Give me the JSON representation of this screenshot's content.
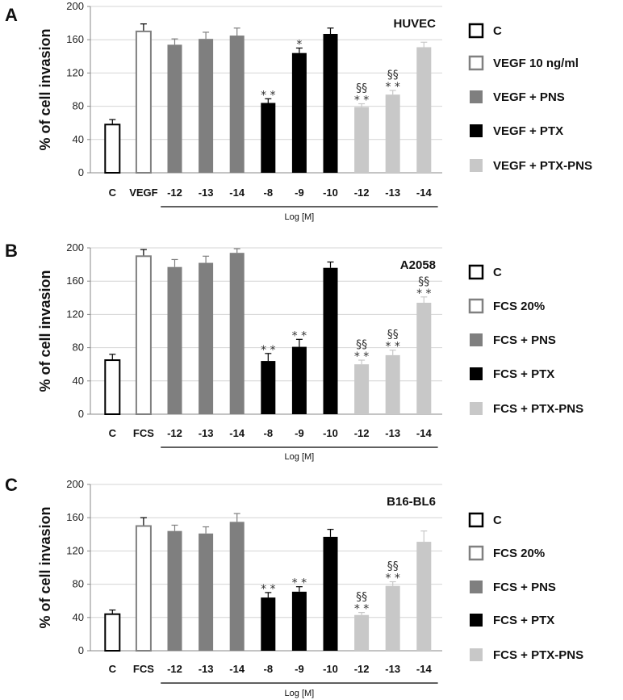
{
  "colors": {
    "C": "#ffffff",
    "VEGF": "#ffffff",
    "PNS": "#7f7f7f",
    "PTX": "#000000",
    "PTX_PNS": "#c8c8c8",
    "grid": "#d4d4d4"
  },
  "chart_data": [
    {
      "panel": "A",
      "type": "bar",
      "title": "HUVEC",
      "ylabel": "% of cell invasion",
      "xlabel": "Log [M]",
      "ylim": [
        0,
        200
      ],
      "yticks": [
        0,
        40,
        80,
        120,
        160,
        200
      ],
      "categories": [
        "C",
        "VEGF",
        "-12",
        "-13",
        "-14",
        "-8",
        "-9",
        "-10",
        "-12",
        "-13",
        "-14"
      ],
      "values": [
        58,
        170,
        154,
        161,
        165,
        84,
        144,
        167,
        79,
        94,
        151
      ],
      "errors": [
        6,
        9,
        7,
        8,
        9,
        5,
        6,
        7,
        4,
        5,
        6
      ],
      "groups": [
        "C",
        "VEGF",
        "PNS",
        "PNS",
        "PNS",
        "PTX",
        "PTX",
        "PTX",
        "PTX_PNS",
        "PTX_PNS",
        "PTX_PNS"
      ],
      "annotations": [
        "",
        "",
        "",
        "",
        "",
        "**",
        "*",
        "",
        "§§\n**",
        "§§\n**",
        ""
      ],
      "legend": [
        "C",
        "VEGF 10 ng/ml",
        "VEGF + PNS",
        "VEGF + PTX",
        "VEGF + PTX-PNS"
      ]
    },
    {
      "panel": "B",
      "type": "bar",
      "title": "A2058",
      "ylabel": "% of cell invasion",
      "xlabel": "Log [M]",
      "ylim": [
        0,
        200
      ],
      "yticks": [
        0,
        40,
        80,
        120,
        160,
        200
      ],
      "categories": [
        "C",
        "FCS",
        "-12",
        "-13",
        "-14",
        "-8",
        "-9",
        "-10",
        "-12",
        "-13",
        "-14"
      ],
      "values": [
        65,
        190,
        177,
        182,
        194,
        64,
        81,
        176,
        60,
        71,
        134
      ],
      "errors": [
        7,
        8,
        9,
        8,
        5,
        9,
        9,
        7,
        5,
        6,
        7
      ],
      "groups": [
        "C",
        "VEGF",
        "PNS",
        "PNS",
        "PNS",
        "PTX",
        "PTX",
        "PTX",
        "PTX_PNS",
        "PTX_PNS",
        "PTX_PNS"
      ],
      "annotations": [
        "",
        "",
        "",
        "",
        "",
        "**",
        "**",
        "",
        "§§\n**",
        "§§\n**",
        "§§\n**"
      ],
      "legend": [
        "C",
        "FCS 20%",
        "FCS + PNS",
        "FCS + PTX",
        "FCS + PTX-PNS"
      ]
    },
    {
      "panel": "C",
      "type": "bar",
      "title": "B16-BL6",
      "ylabel": "% of cell invasion",
      "xlabel": "Log [M]",
      "ylim": [
        0,
        200
      ],
      "yticks": [
        0,
        40,
        80,
        120,
        160,
        200
      ],
      "categories": [
        "C",
        "FCS",
        "-12",
        "-13",
        "-14",
        "-8",
        "-9",
        "-10",
        "-12",
        "-13",
        "-14"
      ],
      "values": [
        44,
        150,
        144,
        141,
        155,
        64,
        71,
        137,
        43,
        78,
        131
      ],
      "errors": [
        5,
        10,
        7,
        8,
        10,
        6,
        6,
        9,
        3,
        5,
        13
      ],
      "groups": [
        "C",
        "VEGF",
        "PNS",
        "PNS",
        "PNS",
        "PTX",
        "PTX",
        "PTX",
        "PTX_PNS",
        "PTX_PNS",
        "PTX_PNS"
      ],
      "annotations": [
        "",
        "",
        "",
        "",
        "",
        "**",
        "**",
        "",
        "§§\n**",
        "§§\n**",
        ""
      ],
      "legend": [
        "C",
        "FCS 20%",
        "FCS + PNS",
        "FCS + PTX",
        "FCS + PTX-PNS"
      ]
    }
  ]
}
